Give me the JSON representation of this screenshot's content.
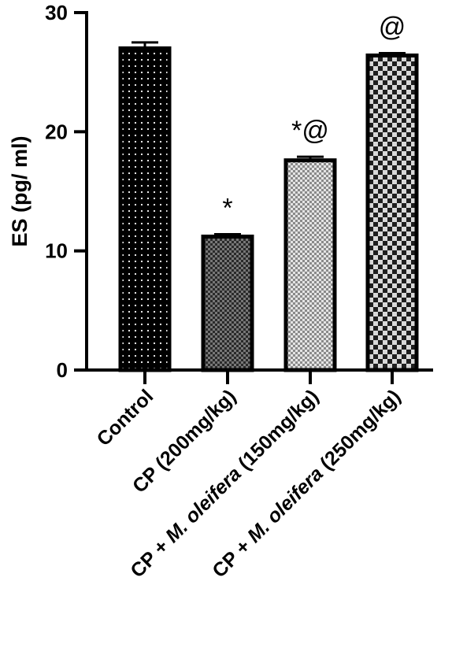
{
  "chart_data": {
    "type": "bar",
    "title": "",
    "xlabel": "",
    "ylabel": "ES (pg/ ml)",
    "ylim": [
      0,
      30
    ],
    "yticks": [
      0,
      10,
      20,
      30
    ],
    "grid": false,
    "categories": [
      {
        "parts": [
          "Control"
        ]
      },
      {
        "parts": [
          "CP (200mg/kg)"
        ]
      },
      {
        "parts": [
          "CP +  ",
          "M. oleifera",
          " (150mg/kg)"
        ]
      },
      {
        "parts": [
          "CP +  ",
          "M. oleifera",
          " (250mg/kg)"
        ]
      }
    ],
    "values": [
      27.0,
      11.2,
      17.6,
      26.4
    ],
    "errors": [
      0.5,
      0.2,
      0.3,
      0.2
    ],
    "annotations": [
      "",
      "*",
      "*@",
      "@"
    ],
    "patterns": [
      "dots-on-black",
      "fine-checker",
      "fine-checker-light",
      "coarse-checker"
    ]
  }
}
